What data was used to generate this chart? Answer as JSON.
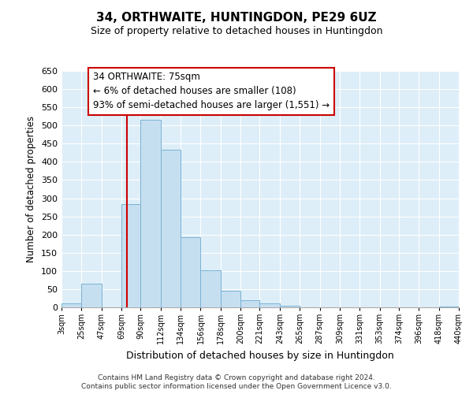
{
  "title": "34, ORTHWAITE, HUNTINGDON, PE29 6UZ",
  "subtitle": "Size of property relative to detached houses in Huntingdon",
  "xlabel": "Distribution of detached houses by size in Huntingdon",
  "ylabel": "Number of detached properties",
  "bar_color": "#c6dff0",
  "bar_edge_color": "#7ab3d4",
  "background_color": "#ffffff",
  "plot_bg_color": "#ddeef8",
  "grid_color": "#ffffff",
  "annotation_box_color": "#ffffff",
  "annotation_box_edge": "#cc0000",
  "vline_color": "#cc0000",
  "vline_x": 75,
  "bin_edges": [
    3,
    25,
    47,
    69,
    90,
    112,
    134,
    156,
    178,
    200,
    221,
    243,
    265,
    287,
    309,
    331,
    353,
    374,
    396,
    418,
    440
  ],
  "bar_heights": [
    10,
    65,
    0,
    283,
    515,
    433,
    192,
    101,
    46,
    19,
    10,
    5,
    0,
    0,
    0,
    0,
    0,
    0,
    0,
    3
  ],
  "tick_labels": [
    "3sqm",
    "25sqm",
    "47sqm",
    "69sqm",
    "90sqm",
    "112sqm",
    "134sqm",
    "156sqm",
    "178sqm",
    "200sqm",
    "221sqm",
    "243sqm",
    "265sqm",
    "287sqm",
    "309sqm",
    "331sqm",
    "353sqm",
    "374sqm",
    "396sqm",
    "418sqm",
    "440sqm"
  ],
  "ylim": [
    0,
    650
  ],
  "yticks": [
    0,
    50,
    100,
    150,
    200,
    250,
    300,
    350,
    400,
    450,
    500,
    550,
    600,
    650
  ],
  "annotation_title": "34 ORTHWAITE: 75sqm",
  "annotation_line1": "← 6% of detached houses are smaller (108)",
  "annotation_line2": "93% of semi-detached houses are larger (1,551) →",
  "footer1": "Contains HM Land Registry data © Crown copyright and database right 2024.",
  "footer2": "Contains public sector information licensed under the Open Government Licence v3.0."
}
